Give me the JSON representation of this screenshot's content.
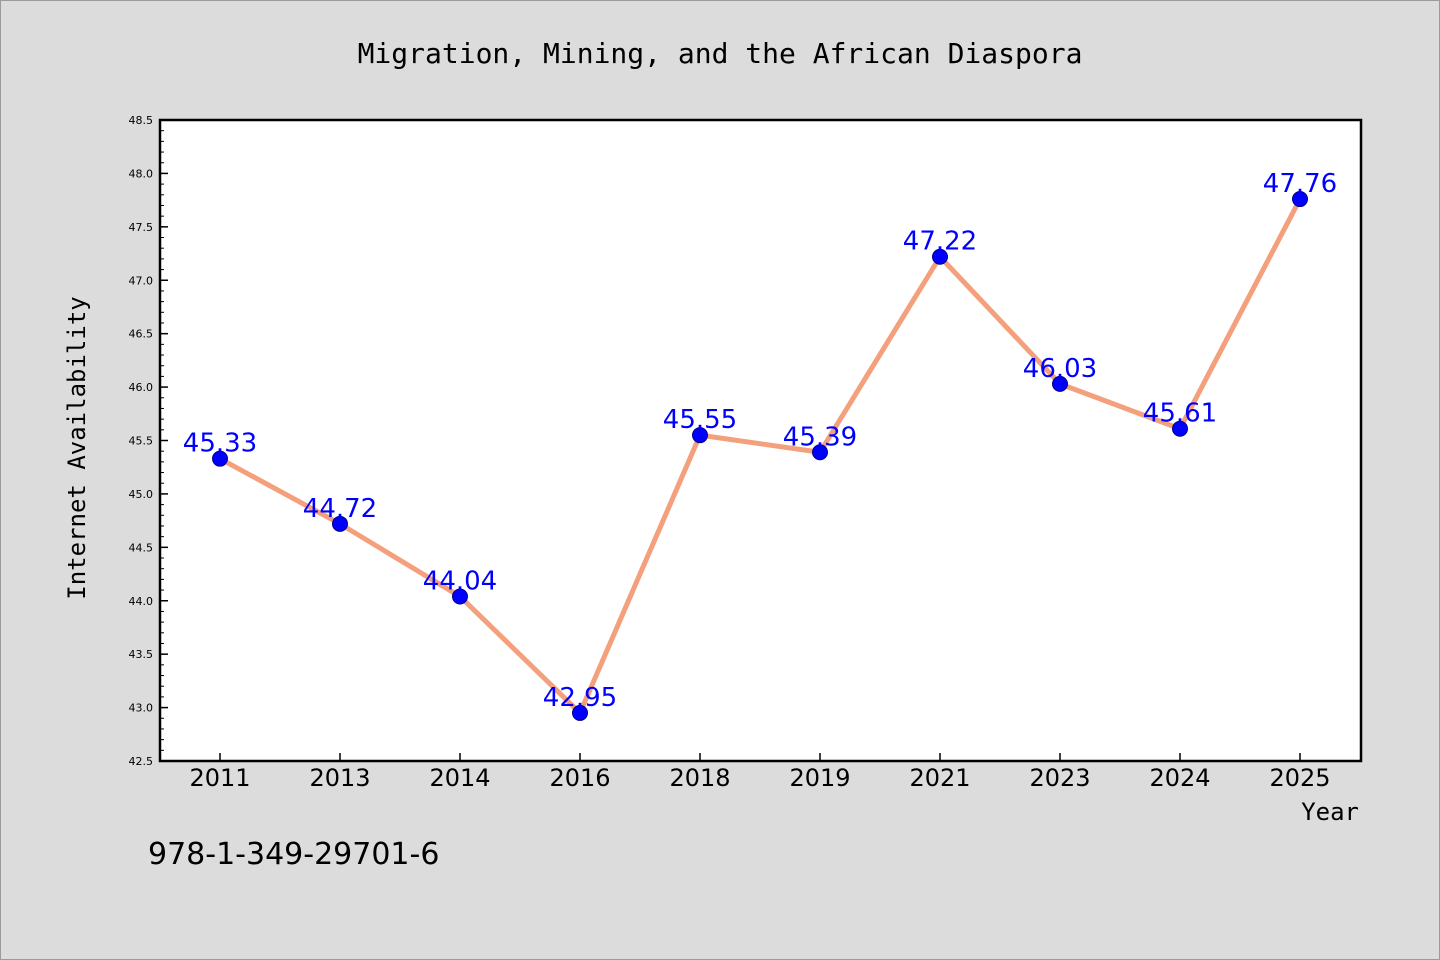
{
  "chart_data": {
    "type": "line",
    "title": "Migration, Mining, and the African Diaspora",
    "xlabel": "Year",
    "ylabel": "Internet Availability",
    "ylim": [
      42.5,
      48.5
    ],
    "yticks": [
      "42.5",
      "43.0",
      "43.5",
      "44.0",
      "44.5",
      "45.0",
      "45.5",
      "46.0",
      "46.5",
      "47.0",
      "47.5",
      "48.0",
      "48.5"
    ],
    "categories": [
      "2011",
      "2013",
      "2014",
      "2016",
      "2018",
      "2019",
      "2021",
      "2023",
      "2024",
      "2025"
    ],
    "values": [
      45.33,
      44.72,
      44.04,
      42.95,
      45.55,
      45.39,
      47.22,
      46.03,
      45.61,
      47.76
    ],
    "data_labels": [
      "45.33",
      "44.72",
      "44.04",
      "42.95",
      "45.55",
      "45.39",
      "47.22",
      "46.03",
      "45.61",
      "47.76"
    ],
    "grid": false,
    "line_color": "#f4a07c",
    "marker_color": "#0000ff"
  },
  "annotation": "978-1-349-29701-6"
}
